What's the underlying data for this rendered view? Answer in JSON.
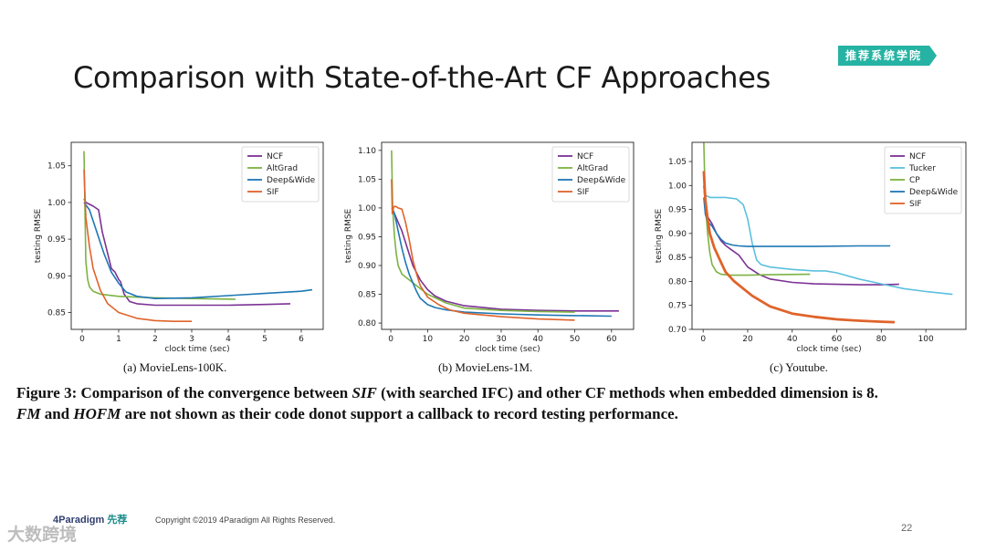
{
  "slide": {
    "title": "Comparison with State-of-the-Art CF Approaches",
    "badge": "推荐系统学院",
    "figure_caption_parts": [
      {
        "text": "Figure 3: Comparison of the convergence between ",
        "italic": false
      },
      {
        "text": "SIF",
        "italic": true
      },
      {
        "text": " (with searched IFC) and other CF methods when embedded dimension is 8.",
        "italic": false
      },
      {
        "text": "FM",
        "italic": true,
        "break_before": true
      },
      {
        "text": " and ",
        "italic": false
      },
      {
        "text": "HOFM",
        "italic": true
      },
      {
        "text": " are not shown as their code donot support a callback to record testing performance.",
        "italic": false
      }
    ],
    "footer": "Copyright ©2019 4Paradigm All Rights Reserved.",
    "page_number": "22",
    "logo_text": "4Paradigm",
    "logo_sub": "先荐",
    "watermark": "大数跨境"
  },
  "chart_data": [
    {
      "type": "line",
      "subcaption": "(a)  MovieLens-100K.",
      "xlabel": "clock time (sec)",
      "ylabel": "testing RMSE",
      "xlim": [
        -0.3,
        6.6
      ],
      "ylim": [
        0.827,
        1.082
      ],
      "xticks": [
        0,
        1,
        2,
        3,
        4,
        5,
        6
      ],
      "yticks": [
        0.85,
        0.9,
        0.95,
        1.0,
        1.05
      ],
      "ytick_labels": [
        "0.85",
        "0.90",
        "0.95",
        "1.00",
        "1.05"
      ],
      "series": [
        {
          "name": "NCF",
          "color": "#7b3294",
          "width": 1.6,
          "x": [
            0.05,
            0.1,
            0.3,
            0.45,
            0.55,
            0.7,
            0.8,
            0.9,
            1.0,
            1.05,
            1.15,
            1.3,
            1.5,
            2.0,
            3.0,
            4.0,
            5.0,
            5.7
          ],
          "y": [
            1.005,
            1.0,
            0.995,
            0.99,
            0.96,
            0.93,
            0.91,
            0.905,
            0.895,
            0.892,
            0.875,
            0.865,
            0.862,
            0.86,
            0.86,
            0.86,
            0.861,
            0.862
          ]
        },
        {
          "name": "AltGrad",
          "color": "#7cb342",
          "width": 1.6,
          "x": [
            0.05,
            0.08,
            0.1,
            0.15,
            0.2,
            0.3,
            0.5,
            1.0,
            2.0,
            3.0,
            4.2
          ],
          "y": [
            1.07,
            0.98,
            0.92,
            0.895,
            0.885,
            0.879,
            0.875,
            0.872,
            0.87,
            0.869,
            0.868
          ]
        },
        {
          "name": "Deep&Wide",
          "color": "#1f77b4",
          "width": 1.6,
          "x": [
            0.05,
            0.2,
            0.4,
            0.6,
            0.8,
            1.0,
            1.2,
            1.5,
            2.0,
            3.0,
            4.0,
            5.0,
            6.0,
            6.3
          ],
          "y": [
            1.0,
            0.99,
            0.96,
            0.93,
            0.905,
            0.89,
            0.878,
            0.872,
            0.869,
            0.87,
            0.873,
            0.876,
            0.879,
            0.881
          ]
        },
        {
          "name": "SIF",
          "color": "#e0632b",
          "width": 1.6,
          "x": [
            0.05,
            0.1,
            0.2,
            0.3,
            0.5,
            0.7,
            1.0,
            1.5,
            2.0,
            2.5,
            3.0
          ],
          "y": [
            1.045,
            0.98,
            0.94,
            0.91,
            0.88,
            0.862,
            0.85,
            0.842,
            0.839,
            0.838,
            0.838
          ]
        }
      ]
    },
    {
      "type": "line",
      "subcaption": "(b)  MovieLens-1M.",
      "xlabel": "clock time (sec)",
      "ylabel": "testing RMSE",
      "xlim": [
        -2.5,
        66
      ],
      "ylim": [
        0.789,
        1.114
      ],
      "xticks": [
        0,
        10,
        20,
        30,
        40,
        50,
        60
      ],
      "yticks": [
        0.8,
        0.85,
        0.9,
        0.95,
        1.0,
        1.05,
        1.1
      ],
      "ytick_labels": [
        "0.80",
        "0.85",
        "0.90",
        "0.95",
        "1.00",
        "1.05",
        "1.10"
      ],
      "series": [
        {
          "name": "NCF",
          "color": "#7b3294",
          "width": 1.6,
          "x": [
            0.3,
            1,
            2,
            3,
            4,
            5,
            6,
            8,
            10,
            12,
            15,
            20,
            30,
            40,
            50,
            62
          ],
          "y": [
            1.0,
            0.99,
            0.975,
            0.96,
            0.94,
            0.92,
            0.9,
            0.875,
            0.858,
            0.847,
            0.838,
            0.83,
            0.824,
            0.822,
            0.821,
            0.821
          ]
        },
        {
          "name": "AltGrad",
          "color": "#7cb342",
          "width": 1.6,
          "x": [
            0.2,
            0.5,
            1,
            1.5,
            2,
            3,
            5,
            7,
            10,
            15,
            20,
            30,
            40,
            50
          ],
          "y": [
            1.1,
            1.0,
            0.95,
            0.92,
            0.9,
            0.885,
            0.875,
            0.865,
            0.85,
            0.835,
            0.826,
            0.822,
            0.82,
            0.819
          ]
        },
        {
          "name": "Deep&Wide",
          "color": "#1f77b4",
          "width": 1.6,
          "x": [
            0.3,
            1,
            2,
            3,
            4,
            5,
            6,
            7,
            8,
            10,
            12,
            15,
            20,
            30,
            40,
            50,
            60
          ],
          "y": [
            1.0,
            0.99,
            0.96,
            0.93,
            0.905,
            0.885,
            0.87,
            0.855,
            0.843,
            0.832,
            0.827,
            0.823,
            0.819,
            0.816,
            0.814,
            0.813,
            0.812
          ]
        },
        {
          "name": "SIF",
          "color": "#e0632b",
          "width": 1.6,
          "x": [
            0.2,
            0.4,
            0.7,
            1,
            1.5,
            2,
            3,
            4,
            5,
            6,
            7,
            8,
            10,
            13,
            16,
            20,
            30,
            40,
            50
          ],
          "y": [
            1.05,
            0.99,
            1.0,
            1.003,
            1.002,
            1.0,
            0.998,
            0.975,
            0.945,
            0.91,
            0.885,
            0.865,
            0.845,
            0.832,
            0.823,
            0.817,
            0.811,
            0.807,
            0.805
          ]
        }
      ]
    },
    {
      "type": "line",
      "subcaption": "(c)  Youtube.",
      "xlabel": "clock time (sec)",
      "ylabel": "testing RMSE",
      "xlim": [
        -5,
        118
      ],
      "ylim": [
        0.7,
        1.09
      ],
      "xticks": [
        0,
        20,
        40,
        60,
        80,
        100
      ],
      "yticks": [
        0.7,
        0.75,
        0.8,
        0.85,
        0.9,
        0.95,
        1.0,
        1.05
      ],
      "ytick_labels": [
        "0.70",
        "0.75",
        "0.80",
        "0.85",
        "0.90",
        "0.95",
        "1.00",
        "1.05"
      ],
      "series": [
        {
          "name": "NCF",
          "color": "#7b3294",
          "width": 1.6,
          "x": [
            0.3,
            1,
            2,
            4,
            6,
            8,
            10,
            13,
            16,
            20,
            25,
            30,
            40,
            50,
            60,
            70,
            80,
            88
          ],
          "y": [
            1.0,
            0.96,
            0.935,
            0.92,
            0.9,
            0.885,
            0.875,
            0.865,
            0.855,
            0.83,
            0.815,
            0.805,
            0.798,
            0.795,
            0.794,
            0.793,
            0.793,
            0.794
          ]
        },
        {
          "name": "Tucker",
          "color": "#5bc0de",
          "width": 1.6,
          "x": [
            0.3,
            1,
            3,
            6,
            10,
            15,
            18,
            20,
            22,
            24,
            26,
            30,
            40,
            50,
            55,
            60,
            70,
            80,
            90,
            100,
            112
          ],
          "y": [
            1.0,
            0.98,
            0.975,
            0.975,
            0.975,
            0.972,
            0.96,
            0.93,
            0.88,
            0.845,
            0.835,
            0.83,
            0.825,
            0.822,
            0.822,
            0.818,
            0.805,
            0.795,
            0.785,
            0.779,
            0.773
          ]
        },
        {
          "name": "CP",
          "color": "#7cb342",
          "width": 1.6,
          "x": [
            0.3,
            1,
            2,
            3,
            4,
            6,
            8,
            12,
            20,
            30,
            48
          ],
          "y": [
            1.09,
            0.96,
            0.9,
            0.86,
            0.835,
            0.82,
            0.815,
            0.813,
            0.813,
            0.814,
            0.815
          ]
        },
        {
          "name": "Deep&Wide",
          "color": "#1f77b4",
          "width": 1.6,
          "x": [
            0.3,
            1,
            2,
            4,
            6,
            8,
            10,
            13,
            16,
            20,
            30,
            50,
            70,
            84
          ],
          "y": [
            0.975,
            0.94,
            0.925,
            0.915,
            0.9,
            0.888,
            0.88,
            0.876,
            0.874,
            0.873,
            0.873,
            0.873,
            0.874,
            0.874
          ]
        },
        {
          "name": "SIF",
          "color": "#e0632b",
          "width": 2.8,
          "x": [
            0.3,
            1,
            2,
            3,
            5,
            8,
            10,
            14,
            18,
            22,
            30,
            40,
            50,
            60,
            70,
            80,
            86
          ],
          "y": [
            1.03,
            0.97,
            0.93,
            0.9,
            0.87,
            0.84,
            0.82,
            0.8,
            0.785,
            0.77,
            0.748,
            0.733,
            0.726,
            0.721,
            0.718,
            0.716,
            0.715
          ]
        }
      ]
    }
  ]
}
